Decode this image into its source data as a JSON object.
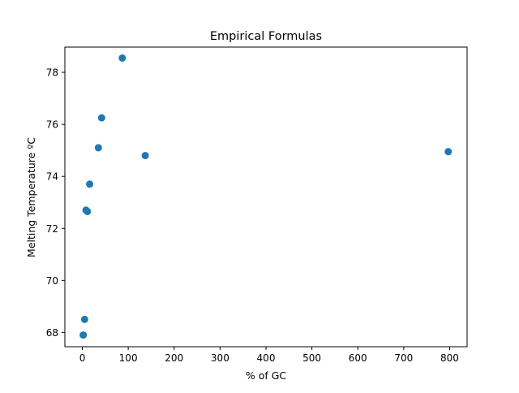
{
  "chart_data": {
    "type": "scatter",
    "title": "Empirical Formulas",
    "xlabel": "% of GC",
    "ylabel": "Melting Temperature ºC",
    "xlim": [
      -38,
      838
    ],
    "ylim": [
      67.45,
      78.97
    ],
    "xticks": [
      0,
      100,
      200,
      300,
      400,
      500,
      600,
      700,
      800
    ],
    "yticks": [
      68,
      70,
      72,
      74,
      76,
      78
    ],
    "grid": false,
    "marker_color": "#1f77b4",
    "points": [
      {
        "x": 2,
        "y": 67.9
      },
      {
        "x": 5,
        "y": 68.5
      },
      {
        "x": 8,
        "y": 72.7
      },
      {
        "x": 11,
        "y": 72.65
      },
      {
        "x": 16,
        "y": 73.7
      },
      {
        "x": 35,
        "y": 75.1
      },
      {
        "x": 42,
        "y": 76.25
      },
      {
        "x": 87,
        "y": 78.55
      },
      {
        "x": 137,
        "y": 74.8
      },
      {
        "x": 797,
        "y": 74.95
      }
    ]
  }
}
